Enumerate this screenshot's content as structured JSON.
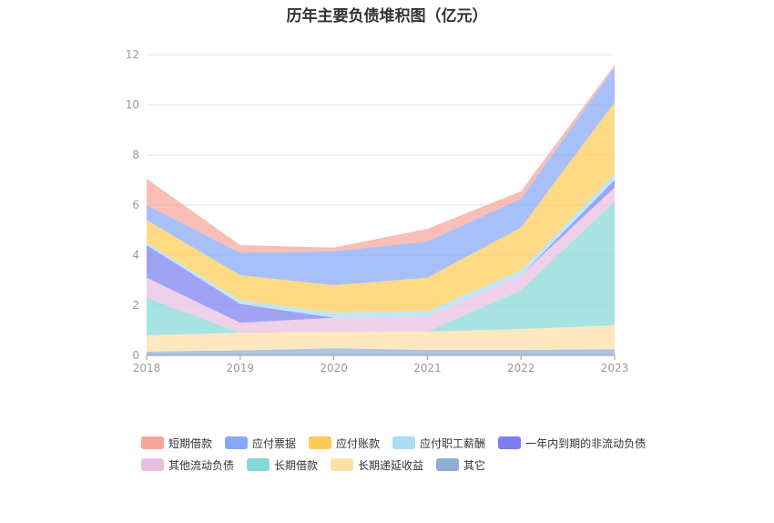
{
  "chart_data": {
    "type": "area",
    "stacked": true,
    "title": "历年主要负债堆积图（亿元）",
    "xlabel": "",
    "ylabel": "",
    "categories": [
      "2018",
      "2019",
      "2020",
      "2021",
      "2022",
      "2023"
    ],
    "ylim": [
      0,
      12
    ],
    "yticks": [
      0,
      2,
      4,
      6,
      8,
      10,
      12
    ],
    "grid": true,
    "legend_position": "bottom",
    "series": [
      {
        "name": "其它",
        "color": "#8eaed8",
        "values": [
          0.15,
          0.2,
          0.28,
          0.22,
          0.22,
          0.25
        ]
      },
      {
        "name": "长期递延收益",
        "color": "#ffdfa6",
        "values": [
          0.65,
          0.7,
          0.65,
          0.73,
          0.83,
          0.95
        ]
      },
      {
        "name": "长期借款",
        "color": "#86d8d8",
        "values": [
          1.5,
          0.0,
          0.0,
          0.0,
          1.55,
          4.95
        ]
      },
      {
        "name": "其他流动负债",
        "color": "#e8bfe0",
        "values": [
          0.8,
          0.4,
          0.57,
          0.6,
          0.6,
          0.55
        ]
      },
      {
        "name": "一年内到期的非流动负债",
        "color": "#7b7fef",
        "values": [
          1.3,
          0.75,
          0.0,
          0.0,
          0.0,
          0.3
        ]
      },
      {
        "name": "应付职工薪酬",
        "color": "#a8dcf7",
        "values": [
          0.1,
          0.15,
          0.2,
          0.2,
          0.2,
          0.25
        ]
      },
      {
        "name": "应付账款",
        "color": "#ffcb55",
        "values": [
          0.9,
          1.0,
          1.1,
          1.35,
          1.7,
          2.85
        ]
      },
      {
        "name": "应付票据",
        "color": "#87a8f8",
        "values": [
          0.6,
          0.9,
          1.35,
          1.45,
          1.15,
          1.4
        ]
      },
      {
        "name": "短期借款",
        "color": "#f7a59a",
        "values": [
          1.05,
          0.3,
          0.15,
          0.5,
          0.3,
          0.1
        ]
      }
    ],
    "legend_rows": [
      [
        "短期借款",
        "应付票据",
        "应付账款",
        "应付职工薪酬",
        "一年内到期的非流动负债"
      ],
      [
        "其他流动负债",
        "长期借款",
        "长期递延收益",
        "其它"
      ]
    ]
  }
}
